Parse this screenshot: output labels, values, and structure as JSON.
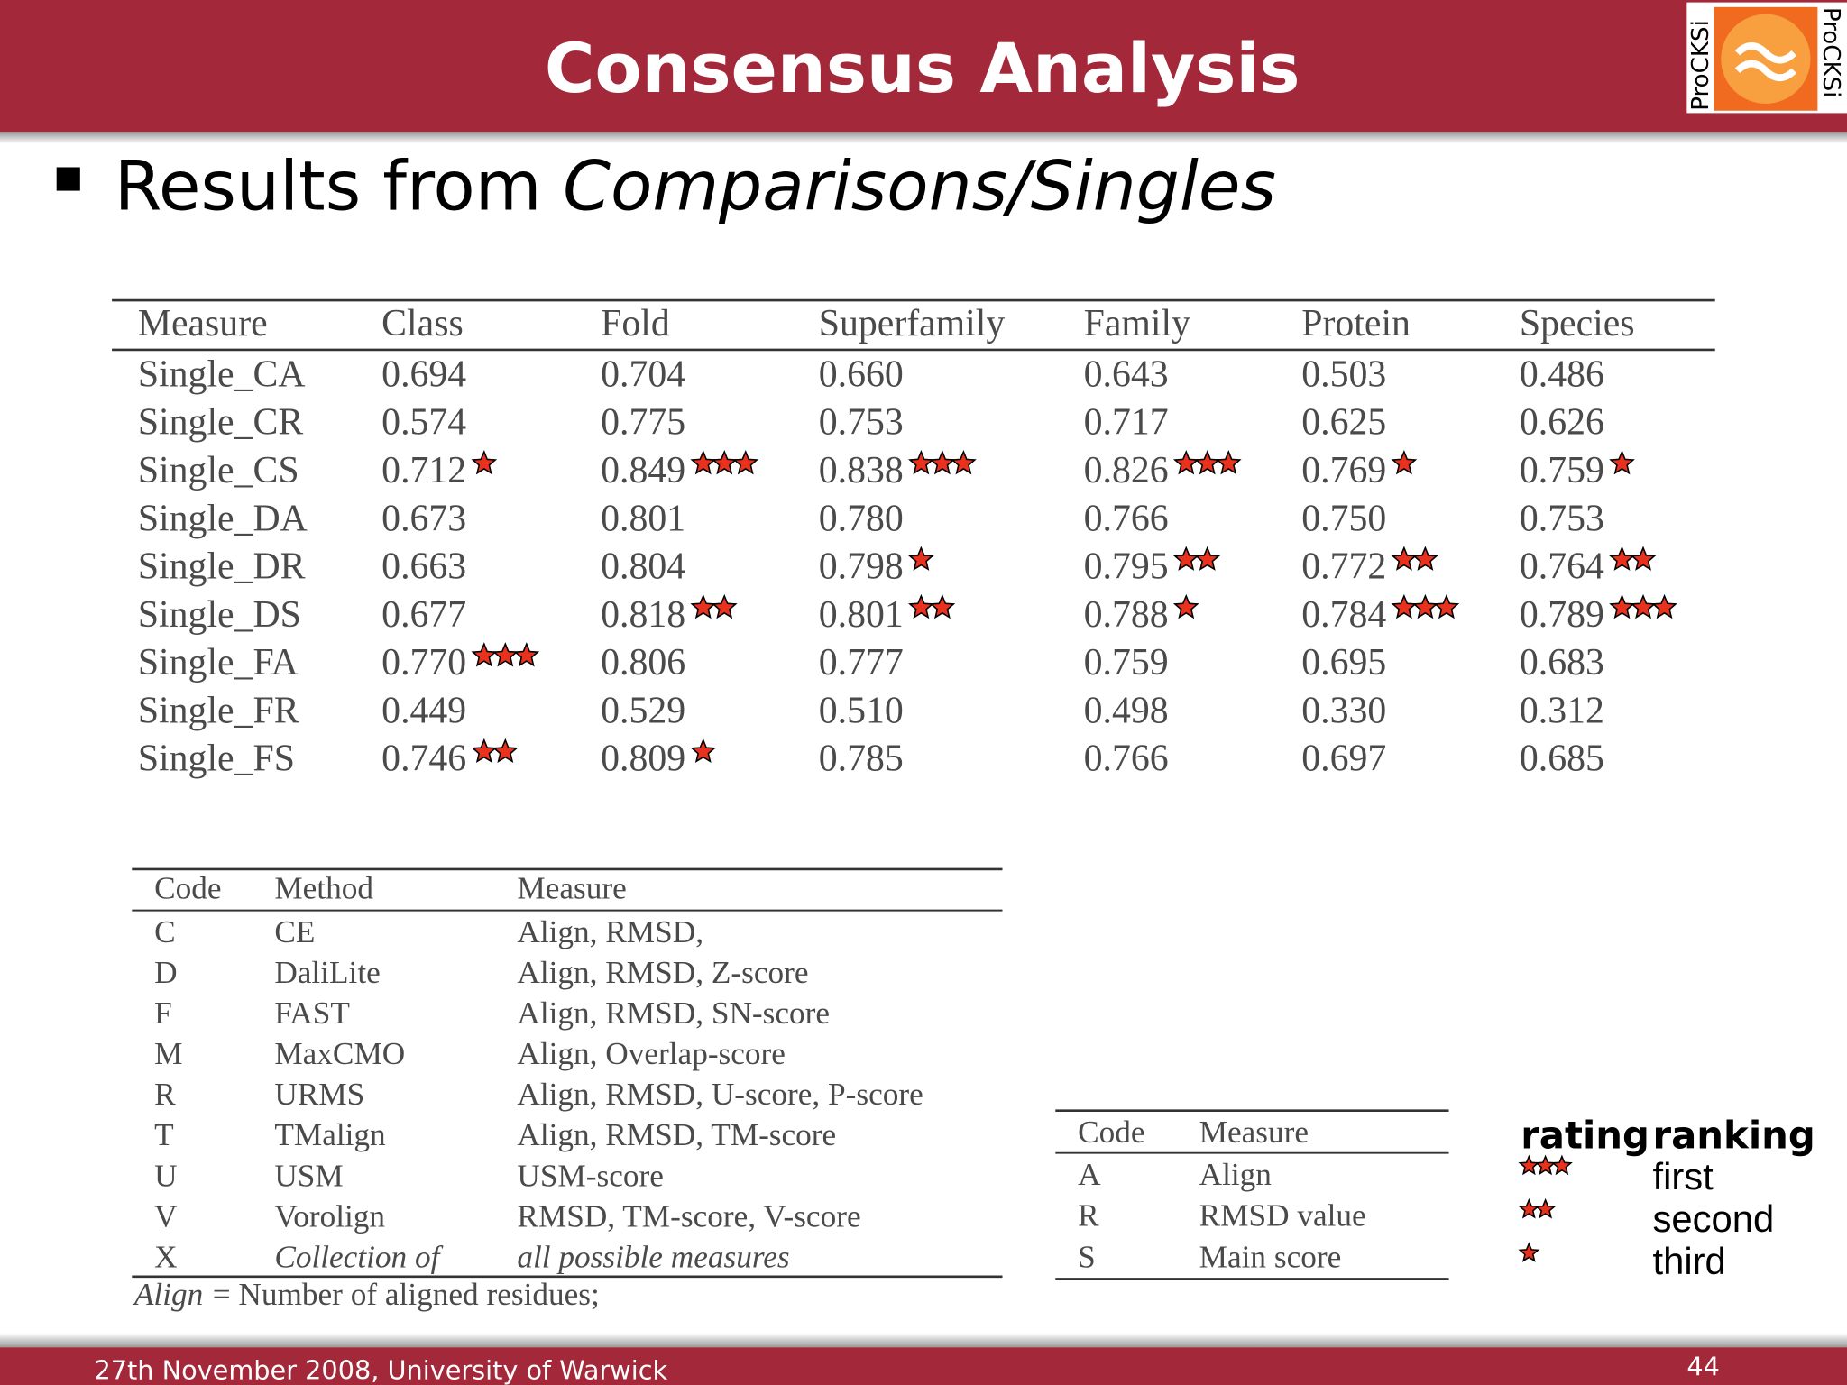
{
  "header": {
    "title": "Consensus Analysis",
    "logo": "ProCKSi"
  },
  "bullet": {
    "text": "Results from",
    "emphasis": "Comparisons/Singles"
  },
  "table": {
    "columns": [
      "Measure",
      "Class",
      "Fold",
      "Superfamily",
      "Family",
      "Protein",
      "Species"
    ],
    "rows": [
      {
        "measure": "Single_CA",
        "values": [
          "0.694",
          "0.704",
          "0.660",
          "0.643",
          "0.503",
          "0.486"
        ],
        "stars": [
          null,
          null,
          null,
          null,
          null,
          null
        ]
      },
      {
        "measure": "Single_CR",
        "values": [
          "0.574",
          "0.775",
          "0.753",
          "0.717",
          "0.625",
          "0.626"
        ],
        "stars": [
          null,
          null,
          null,
          null,
          null,
          null
        ]
      },
      {
        "measure": "Single_CS",
        "values": [
          "0.712",
          "0.849",
          "0.838",
          "0.826",
          "0.769",
          "0.759"
        ],
        "stars": [
          1,
          3,
          3,
          3,
          1,
          1
        ]
      },
      {
        "measure": "Single_DA",
        "values": [
          "0.673",
          "0.801",
          "0.780",
          "0.766",
          "0.750",
          "0.753"
        ],
        "stars": [
          null,
          null,
          null,
          null,
          null,
          null
        ]
      },
      {
        "measure": "Single_DR",
        "values": [
          "0.663",
          "0.804",
          "0.798",
          "0.795",
          "0.772",
          "0.764"
        ],
        "stars": [
          null,
          null,
          1,
          2,
          2,
          2
        ]
      },
      {
        "measure": "Single_DS",
        "values": [
          "0.677",
          "0.818",
          "0.801",
          "0.788",
          "0.784",
          "0.789"
        ],
        "stars": [
          null,
          2,
          2,
          1,
          3,
          3
        ]
      },
      {
        "measure": "Single_FA",
        "values": [
          "0.770",
          "0.806",
          "0.777",
          "0.759",
          "0.695",
          "0.683"
        ],
        "stars": [
          3,
          null,
          null,
          null,
          null,
          null
        ]
      },
      {
        "measure": "Single_FR",
        "values": [
          "0.449",
          "0.529",
          "0.510",
          "0.498",
          "0.330",
          "0.312"
        ],
        "stars": [
          null,
          null,
          null,
          null,
          null,
          null
        ]
      },
      {
        "measure": "Single_FS",
        "values": [
          "0.746",
          "0.809",
          "0.785",
          "0.766",
          "0.697",
          "0.685"
        ],
        "stars": [
          2,
          1,
          null,
          null,
          null,
          null
        ]
      }
    ]
  },
  "methods": {
    "columns": [
      "Code",
      "Method",
      "Measure"
    ],
    "rows": [
      [
        "C",
        "CE",
        "Align, RMSD,"
      ],
      [
        "D",
        "DaliLite",
        "Align, RMSD, Z-score"
      ],
      [
        "F",
        "FAST",
        "Align, RMSD, SN-score"
      ],
      [
        "M",
        "MaxCMO",
        "Align, Overlap-score"
      ],
      [
        "R",
        "URMS",
        "Align, RMSD, U-score, P-score"
      ],
      [
        "T",
        "TMalign",
        "Align, RMSD, TM-score"
      ],
      [
        "U",
        "USM",
        "USM-score"
      ],
      [
        "V",
        "Vorolign",
        "RMSD, TM-score, V-score"
      ],
      [
        "X",
        "Collection of",
        "all possible measures"
      ]
    ],
    "footnote": {
      "term": "Align",
      "definition": "= Number of aligned residues;"
    }
  },
  "measures": {
    "columns": [
      "Code",
      "Measure"
    ],
    "rows": [
      [
        "A",
        "Align"
      ],
      [
        "R",
        "RMSD value"
      ],
      [
        "S",
        "Main score"
      ]
    ]
  },
  "legend": {
    "headers": [
      "rating",
      "ranking"
    ],
    "rows": [
      {
        "stars": 3,
        "label": "first"
      },
      {
        "stars": 2,
        "label": "second"
      },
      {
        "stars": 1,
        "label": "third"
      }
    ]
  },
  "footer": {
    "text": "27th November 2008, University of Warwick",
    "page": "44"
  }
}
